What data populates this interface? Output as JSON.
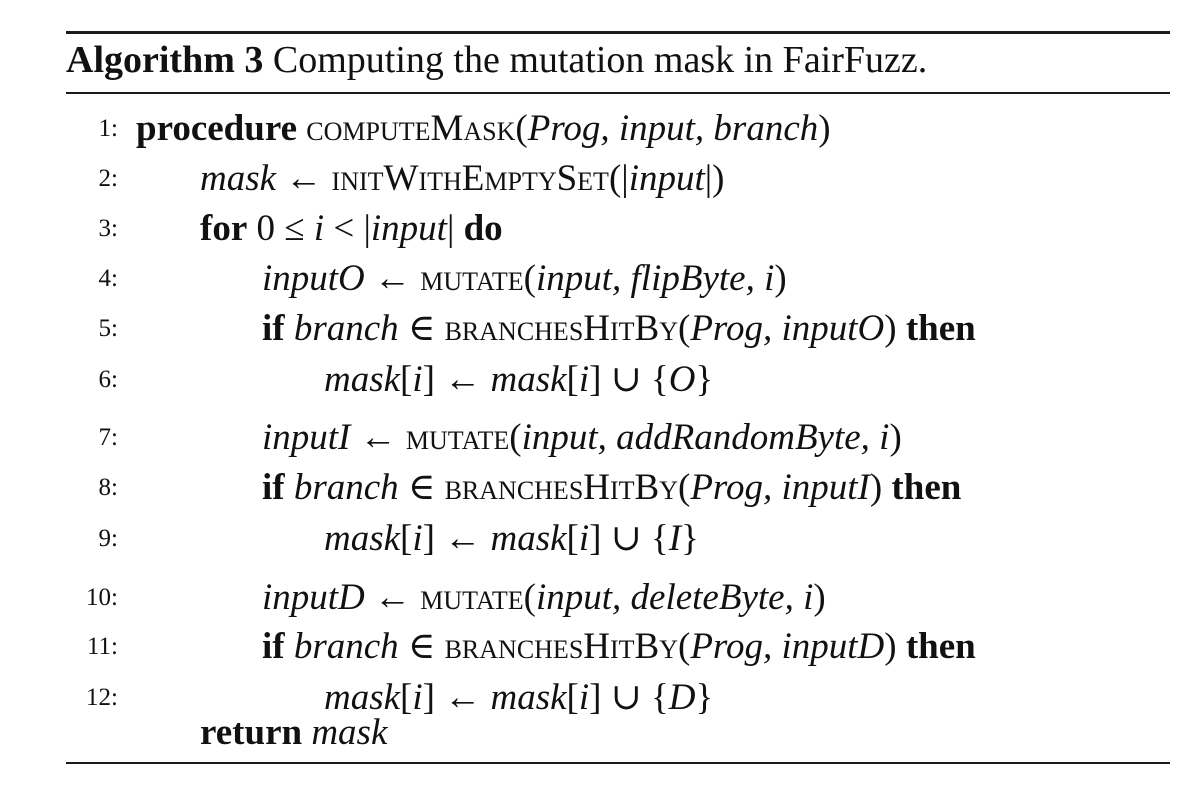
{
  "caption": {
    "label": "Algorithm 3",
    "text": "Computing the mutation mask in FairFuzz."
  },
  "lines": [
    {
      "num": "1:",
      "segments": [
        {
          "t": "procedure",
          "s": "b"
        },
        {
          "t": " "
        },
        {
          "t": "computeMask",
          "s": "sc"
        },
        {
          "t": "("
        },
        {
          "t": "Prog, input, branch",
          "s": "i"
        },
        {
          "t": ")"
        }
      ]
    },
    {
      "num": "2:",
      "segments": [
        {
          "t": "mask",
          "s": "i"
        },
        {
          "t": " ← "
        },
        {
          "t": "initWithEmptySet",
          "s": "sc"
        },
        {
          "t": "(|"
        },
        {
          "t": "input",
          "s": "i"
        },
        {
          "t": "|)"
        }
      ]
    },
    {
      "num": "3:",
      "segments": [
        {
          "t": "for",
          "s": "b"
        },
        {
          "t": " 0 ≤ "
        },
        {
          "t": "i",
          "s": "i"
        },
        {
          "t": " < |"
        },
        {
          "t": "input",
          "s": "i"
        },
        {
          "t": "| "
        },
        {
          "t": "do",
          "s": "b"
        }
      ]
    },
    {
      "num": "4:",
      "segments": [
        {
          "t": "inputO",
          "s": "i"
        },
        {
          "t": " ← "
        },
        {
          "t": "mutate",
          "s": "sc"
        },
        {
          "t": "("
        },
        {
          "t": "input, flipByte, i",
          "s": "i"
        },
        {
          "t": ")"
        }
      ]
    },
    {
      "num": "5:",
      "segments": [
        {
          "t": "if",
          "s": "b"
        },
        {
          "t": " "
        },
        {
          "t": "branch",
          "s": "i"
        },
        {
          "t": " ∈ "
        },
        {
          "t": "branchesHitBy",
          "s": "sc"
        },
        {
          "t": "("
        },
        {
          "t": "Prog, inputO",
          "s": "i"
        },
        {
          "t": ") "
        },
        {
          "t": "then",
          "s": "b"
        }
      ]
    },
    {
      "num": "6:",
      "segments": [
        {
          "t": "mask",
          "s": "i"
        },
        {
          "t": "["
        },
        {
          "t": "i",
          "s": "i"
        },
        {
          "t": "] ← "
        },
        {
          "t": "mask",
          "s": "i"
        },
        {
          "t": "["
        },
        {
          "t": "i",
          "s": "i"
        },
        {
          "t": "] ∪ {"
        },
        {
          "t": "O",
          "s": "i"
        },
        {
          "t": "}"
        }
      ]
    },
    {
      "num": "7:",
      "segments": [
        {
          "t": "inputI",
          "s": "i"
        },
        {
          "t": " ← "
        },
        {
          "t": "mutate",
          "s": "sc"
        },
        {
          "t": "("
        },
        {
          "t": "input, addRandomByte, i",
          "s": "i"
        },
        {
          "t": ")"
        }
      ]
    },
    {
      "num": "8:",
      "segments": [
        {
          "t": "if",
          "s": "b"
        },
        {
          "t": " "
        },
        {
          "t": "branch",
          "s": "i"
        },
        {
          "t": " ∈ "
        },
        {
          "t": "branchesHitBy",
          "s": "sc"
        },
        {
          "t": "("
        },
        {
          "t": "Prog, inputI",
          "s": "i"
        },
        {
          "t": ") "
        },
        {
          "t": "then",
          "s": "b"
        }
      ]
    },
    {
      "num": "9:",
      "segments": [
        {
          "t": "mask",
          "s": "i"
        },
        {
          "t": "["
        },
        {
          "t": "i",
          "s": "i"
        },
        {
          "t": "] ← "
        },
        {
          "t": "mask",
          "s": "i"
        },
        {
          "t": "["
        },
        {
          "t": "i",
          "s": "i"
        },
        {
          "t": "] ∪ {"
        },
        {
          "t": "I",
          "s": "i"
        },
        {
          "t": "}"
        }
      ]
    },
    {
      "num": "10:",
      "segments": [
        {
          "t": "inputD",
          "s": "i"
        },
        {
          "t": " ← "
        },
        {
          "t": "mutate",
          "s": "sc"
        },
        {
          "t": "("
        },
        {
          "t": "input, deleteByte, i",
          "s": "i"
        },
        {
          "t": ")"
        }
      ]
    },
    {
      "num": "11:",
      "segments": [
        {
          "t": "if",
          "s": "b"
        },
        {
          "t": " "
        },
        {
          "t": "branch",
          "s": "i"
        },
        {
          "t": " ∈ "
        },
        {
          "t": "branchesHitBy",
          "s": "sc"
        },
        {
          "t": "("
        },
        {
          "t": "Prog, inputD",
          "s": "i"
        },
        {
          "t": ") "
        },
        {
          "t": "then",
          "s": "b"
        }
      ]
    },
    {
      "num": "12:",
      "segments": [
        {
          "t": "mask",
          "s": "i"
        },
        {
          "t": "["
        },
        {
          "t": "i",
          "s": "i"
        },
        {
          "t": "] ← "
        },
        {
          "t": "mask",
          "s": "i"
        },
        {
          "t": "["
        },
        {
          "t": "i",
          "s": "i"
        },
        {
          "t": "] ∪ {"
        },
        {
          "t": "D",
          "s": "i"
        },
        {
          "t": "}"
        }
      ]
    },
    {
      "num": "",
      "segments": [
        {
          "t": "return",
          "s": "b"
        },
        {
          "t": " "
        },
        {
          "t": "mask",
          "s": "i"
        }
      ]
    }
  ]
}
